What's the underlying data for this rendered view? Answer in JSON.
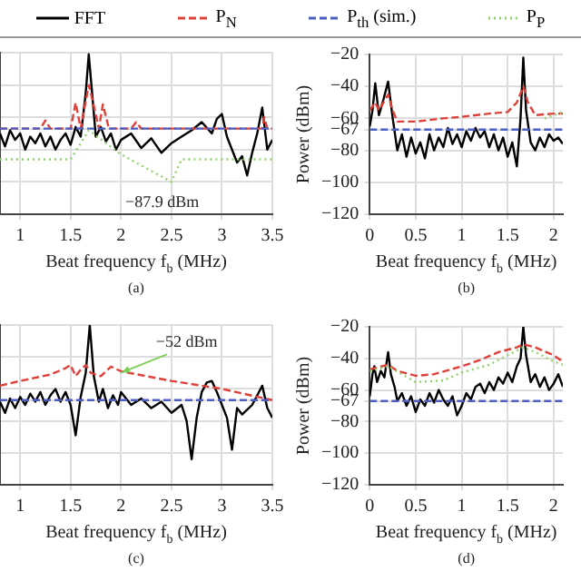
{
  "chart_data": [
    {
      "type": "line",
      "legend": "top",
      "grid": true,
      "marker": "none",
      "tick_labels": "x",
      "xlabel": "Beat frequency f$_{b}$ (MHz)",
      "xlim": [
        0.8,
        3.5
      ],
      "xticks": [
        1,
        1.5,
        2,
        2.5,
        3,
        3.5
      ],
      "ylim": [
        -120,
        -20
      ],
      "yticks": [
        -20,
        -40,
        -60,
        -67,
        -80,
        -100,
        -120
      ],
      "annotations": [
        "(a)",
        "−87.9 dBm"
      ],
      "series": [
        {
          "name": "FFT",
          "color": "#000000",
          "line_style": "solid",
          "x": [
            0.8,
            0.85,
            0.9,
            0.95,
            1.0,
            1.05,
            1.1,
            1.15,
            1.2,
            1.25,
            1.3,
            1.35,
            1.4,
            1.45,
            1.5,
            1.55,
            1.6,
            1.65,
            1.68,
            1.72,
            1.75,
            1.8,
            1.85,
            1.9,
            1.95,
            2.0,
            2.1,
            2.2,
            2.3,
            2.4,
            2.5,
            2.6,
            2.7,
            2.8,
            2.9,
            2.95,
            3.0,
            3.05,
            3.1,
            3.15,
            3.2,
            3.25,
            3.3,
            3.35,
            3.4,
            3.45,
            3.5
          ],
          "values": [
            -70,
            -78,
            -68,
            -74,
            -70,
            -80,
            -72,
            -76,
            -70,
            -78,
            -72,
            -80,
            -74,
            -70,
            -77,
            -66,
            -72,
            -45,
            -21,
            -50,
            -72,
            -66,
            -75,
            -70,
            -80,
            -74,
            -70,
            -79,
            -73,
            -82,
            -76,
            -72,
            -68,
            -63,
            -70,
            -61,
            -58,
            -72,
            -80,
            -88,
            -84,
            -96,
            -82,
            -70,
            -54,
            -80,
            -74
          ]
        },
        {
          "name": "P$_{N}$",
          "color": "#e0403a",
          "line_style": "dashed",
          "x": [
            0.8,
            1.2,
            1.25,
            1.3,
            1.5,
            1.55,
            1.6,
            1.65,
            1.68,
            1.72,
            1.78,
            1.82,
            1.88,
            2.1,
            2.15,
            2.2,
            3.4,
            3.42,
            3.45,
            3.5
          ],
          "values": [
            -67,
            -67,
            -62,
            -67,
            -67,
            -51,
            -67,
            -50,
            -40,
            -50,
            -67,
            -52,
            -67,
            -67,
            -63,
            -67,
            -67,
            -60,
            -67,
            -67
          ]
        },
        {
          "name": "P$_{th}$ (sim.)",
          "color": "#4a5fc1",
          "line_style": "dashed",
          "x": [
            0.8,
            3.5
          ],
          "values": [
            -67,
            -67
          ]
        },
        {
          "name": "P$_{P}$",
          "color": "#8fd46b",
          "line_style": "dotted",
          "x": [
            0.8,
            1.5,
            1.68,
            2.0,
            2.5,
            2.6,
            3.5
          ],
          "values": [
            -86,
            -86,
            -68,
            -83,
            -100,
            -86,
            -86
          ]
        }
      ]
    },
    {
      "type": "line",
      "grid": true,
      "marker": "none",
      "xlabel": "Beat frequency f$_{b}$ (MHz)",
      "ylabel": "Power (dBm)",
      "xlim": [
        0,
        2.1
      ],
      "xticks": [
        0,
        0.5,
        1,
        1.5,
        2
      ],
      "ylim": [
        -120,
        -20
      ],
      "yticks": [
        -20,
        -40,
        -60,
        -67,
        -80,
        -100,
        -120
      ],
      "annotations": [
        "(b)"
      ],
      "series": [
        {
          "color": "#000000",
          "line_style": "solid",
          "x": [
            0,
            0.03,
            0.06,
            0.1,
            0.15,
            0.2,
            0.25,
            0.3,
            0.35,
            0.4,
            0.45,
            0.5,
            0.55,
            0.6,
            0.65,
            0.7,
            0.75,
            0.8,
            0.85,
            0.9,
            0.95,
            1.0,
            1.05,
            1.1,
            1.15,
            1.2,
            1.25,
            1.3,
            1.35,
            1.4,
            1.45,
            1.5,
            1.55,
            1.6,
            1.64,
            1.67,
            1.7,
            1.75,
            1.8,
            1.85,
            1.9,
            1.95,
            2.0,
            2.05,
            2.1
          ],
          "values": [
            -65,
            -55,
            -38,
            -58,
            -48,
            -37,
            -60,
            -80,
            -70,
            -84,
            -72,
            -82,
            -75,
            -85,
            -70,
            -80,
            -72,
            -78,
            -66,
            -76,
            -70,
            -78,
            -68,
            -74,
            -66,
            -72,
            -68,
            -78,
            -70,
            -80,
            -72,
            -84,
            -75,
            -90,
            -60,
            -22,
            -55,
            -75,
            -80,
            -72,
            -78,
            -70,
            -74,
            -72,
            -76
          ]
        },
        {
          "color": "#e0403a",
          "line_style": "dashed",
          "x": [
            0,
            0.06,
            0.1,
            0.2,
            0.25,
            0.3,
            0.5,
            0.8,
            1.0,
            1.3,
            1.5,
            1.6,
            1.67,
            1.72,
            1.8,
            2.0,
            2.1
          ],
          "values": [
            -55,
            -50,
            -55,
            -45,
            -55,
            -62,
            -62,
            -60,
            -59,
            -57,
            -56,
            -50,
            -40,
            -50,
            -58,
            -57,
            -57
          ]
        },
        {
          "color": "#4a5fc1",
          "line_style": "dashed",
          "x": [
            0,
            2.1
          ],
          "values": [
            -67,
            -67
          ]
        },
        {
          "color": "#8fd46b",
          "line_style": "dotted",
          "x": [
            1.9,
            2.1
          ],
          "values": [
            -60,
            -56
          ]
        }
      ]
    },
    {
      "type": "line",
      "grid": true,
      "marker": "none",
      "tick_labels": "x",
      "xlabel": "Beat frequency f$_{b}$ (MHz)",
      "xlim": [
        0.8,
        3.5
      ],
      "xticks": [
        1,
        1.5,
        2,
        2.5,
        3,
        3.5
      ],
      "ylim": [
        -120,
        -20
      ],
      "yticks": [
        -20,
        -40,
        -60,
        -67,
        -80,
        -100,
        -120
      ],
      "annotations": [
        "(c)",
        {
          "text": "−52 dBm",
          "x": 1.95,
          "y": -52
        }
      ],
      "series": [
        {
          "color": "#000000",
          "line_style": "solid",
          "x": [
            0.8,
            0.85,
            0.9,
            0.95,
            1.0,
            1.05,
            1.1,
            1.15,
            1.2,
            1.25,
            1.3,
            1.35,
            1.4,
            1.45,
            1.5,
            1.55,
            1.6,
            1.65,
            1.69,
            1.73,
            1.78,
            1.82,
            1.87,
            1.92,
            1.97,
            2.0,
            2.1,
            2.2,
            2.3,
            2.4,
            2.5,
            2.6,
            2.65,
            2.7,
            2.75,
            2.8,
            2.85,
            2.9,
            2.95,
            3.0,
            3.05,
            3.1,
            3.15,
            3.2,
            3.3,
            3.35,
            3.4,
            3.45,
            3.5
          ],
          "values": [
            -68,
            -75,
            -66,
            -72,
            -65,
            -70,
            -63,
            -68,
            -62,
            -70,
            -64,
            -60,
            -68,
            -62,
            -70,
            -89,
            -65,
            -50,
            -20,
            -52,
            -68,
            -60,
            -72,
            -64,
            -70,
            -62,
            -70,
            -66,
            -72,
            -68,
            -75,
            -70,
            -80,
            -104,
            -78,
            -62,
            -56,
            -55,
            -62,
            -70,
            -78,
            -98,
            -72,
            -76,
            -70,
            -64,
            -58,
            -72,
            -78
          ]
        },
        {
          "color": "#e0403a",
          "line_style": "dashed",
          "x": [
            0.8,
            1.0,
            1.3,
            1.45,
            1.5,
            1.55,
            1.6,
            1.65,
            1.7,
            1.8,
            1.9,
            2.0,
            2.5,
            3.0,
            3.5
          ],
          "values": [
            -58,
            -55,
            -51,
            -47,
            -45,
            -52,
            -48,
            -45,
            -50,
            -52,
            -46,
            -49,
            -55,
            -60,
            -67
          ]
        },
        {
          "color": "#4a5fc1",
          "line_style": "dashed",
          "x": [
            0.8,
            3.5
          ],
          "values": [
            -67,
            -67
          ]
        }
      ]
    },
    {
      "type": "line",
      "grid": true,
      "marker": "none",
      "xlabel": "Beat frequency f$_{b}$ (MHz)",
      "ylabel": "Power (dBm)",
      "xlim": [
        0,
        2.1
      ],
      "xticks": [
        0,
        0.5,
        1,
        1.5,
        2
      ],
      "ylim": [
        -120,
        -20
      ],
      "yticks": [
        -20,
        -40,
        -60,
        -67,
        -80,
        -100,
        -120
      ],
      "annotations": [
        "(d)"
      ],
      "series": [
        {
          "color": "#000000",
          "line_style": "solid",
          "x": [
            0,
            0.03,
            0.05,
            0.08,
            0.12,
            0.16,
            0.2,
            0.23,
            0.27,
            0.3,
            0.35,
            0.4,
            0.45,
            0.5,
            0.55,
            0.6,
            0.65,
            0.7,
            0.75,
            0.8,
            0.85,
            0.9,
            0.95,
            1.0,
            1.05,
            1.1,
            1.15,
            1.2,
            1.25,
            1.3,
            1.35,
            1.4,
            1.45,
            1.5,
            1.55,
            1.6,
            1.64,
            1.67,
            1.7,
            1.75,
            1.8,
            1.85,
            1.9,
            1.95,
            2.0,
            2.05,
            2.1
          ],
          "values": [
            -64,
            -50,
            -45,
            -55,
            -48,
            -52,
            -36,
            -50,
            -58,
            -67,
            -62,
            -70,
            -64,
            -74,
            -66,
            -70,
            -62,
            -68,
            -60,
            -66,
            -70,
            -64,
            -76,
            -70,
            -62,
            -66,
            -58,
            -56,
            -62,
            -55,
            -60,
            -52,
            -56,
            -49,
            -55,
            -45,
            -40,
            -20,
            -38,
            -55,
            -50,
            -58,
            -52,
            -60,
            -56,
            -50,
            -58
          ]
        },
        {
          "color": "#e0403a",
          "line_style": "dashed",
          "x": [
            0,
            0.2,
            0.3,
            0.5,
            0.7,
            1.0,
            1.2,
            1.4,
            1.6,
            1.67,
            1.8,
            2.0,
            2.1
          ],
          "values": [
            -47,
            -44,
            -48,
            -51,
            -50,
            -45,
            -41,
            -36,
            -33,
            -31,
            -33,
            -38,
            -42
          ]
        },
        {
          "color": "#4a5fc1",
          "line_style": "dashed",
          "x": [
            0,
            2.1
          ],
          "values": [
            -67,
            -67
          ]
        },
        {
          "color": "#8fd46b",
          "line_style": "dotted",
          "x": [
            0,
            0.2,
            0.5,
            0.8,
            1.0,
            1.3,
            1.5,
            1.67,
            1.8,
            2.0,
            2.1
          ],
          "values": [
            -48,
            -45,
            -55,
            -54,
            -49,
            -44,
            -38,
            -33,
            -36,
            -42,
            -44
          ]
        }
      ]
    }
  ]
}
